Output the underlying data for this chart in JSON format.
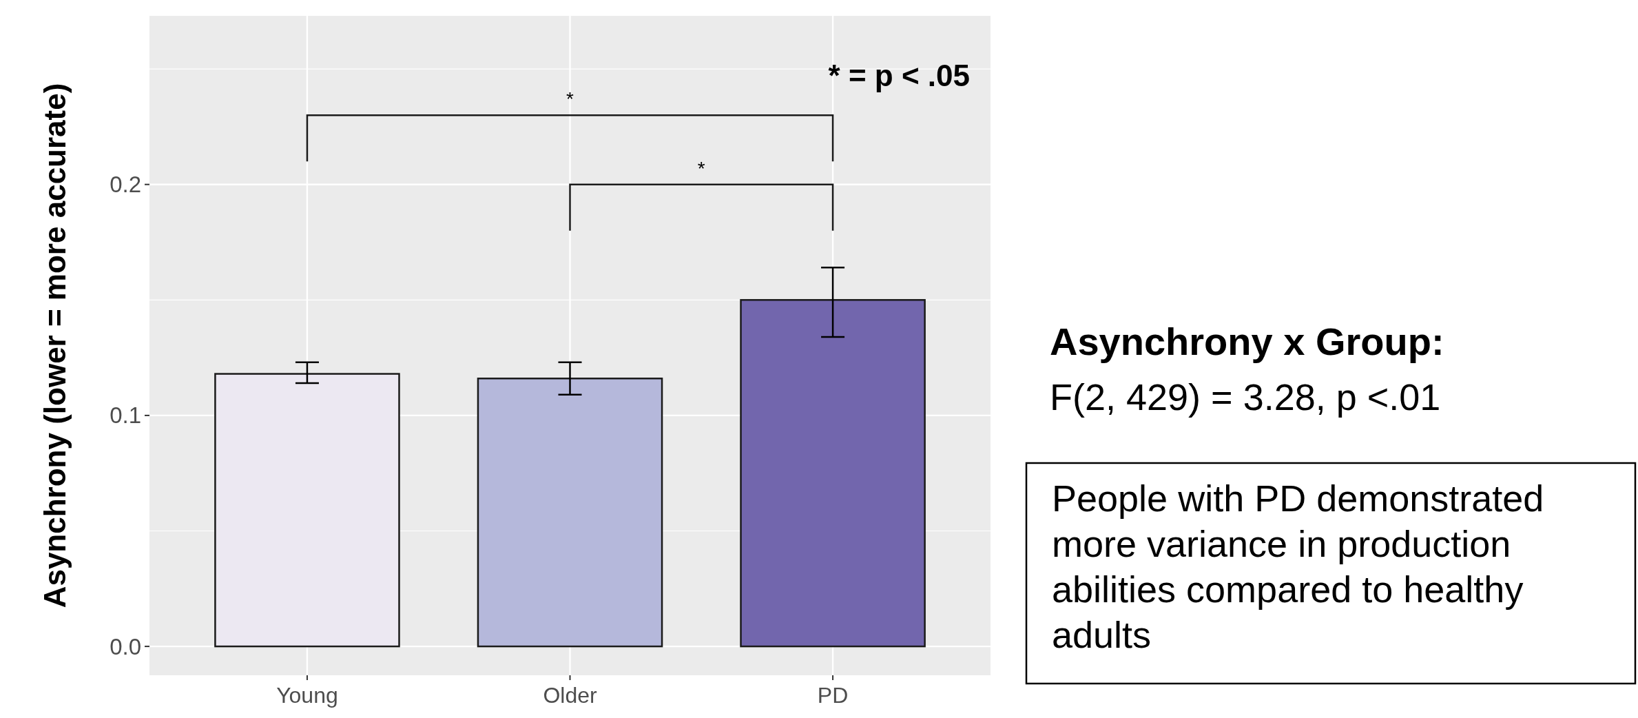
{
  "chart_data": {
    "type": "bar",
    "ylabel": "Asynchrony (lower = more accurate)",
    "categories": [
      "Young",
      "Older",
      "PD"
    ],
    "values": [
      0.118,
      0.116,
      0.15
    ],
    "colors": [
      "#ece8f2",
      "#b5b8db",
      "#7266ad"
    ],
    "errors": [
      [
        0.114,
        0.123
      ],
      [
        0.109,
        0.123
      ],
      [
        0.134,
        0.164
      ]
    ],
    "ylim": [
      -0.0125,
      0.273
    ],
    "yticks": [
      {
        "value": 0,
        "label": "0.0"
      },
      {
        "value": 0.05,
        "label": null
      },
      {
        "value": 0.1,
        "label": "0.1"
      },
      {
        "value": 0.15,
        "label": null
      },
      {
        "value": 0.2,
        "label": "0.2"
      },
      {
        "value": 0.25,
        "label": null
      }
    ],
    "grid": true,
    "annotations": [
      "*",
      "*",
      "* = p < .05",
      "Asynchrony x Group:",
      "F(2, 429) = 3.28, p <.01",
      "People with PD demonstrated more variance in production abilities compared to healthy adults"
    ]
  }
}
